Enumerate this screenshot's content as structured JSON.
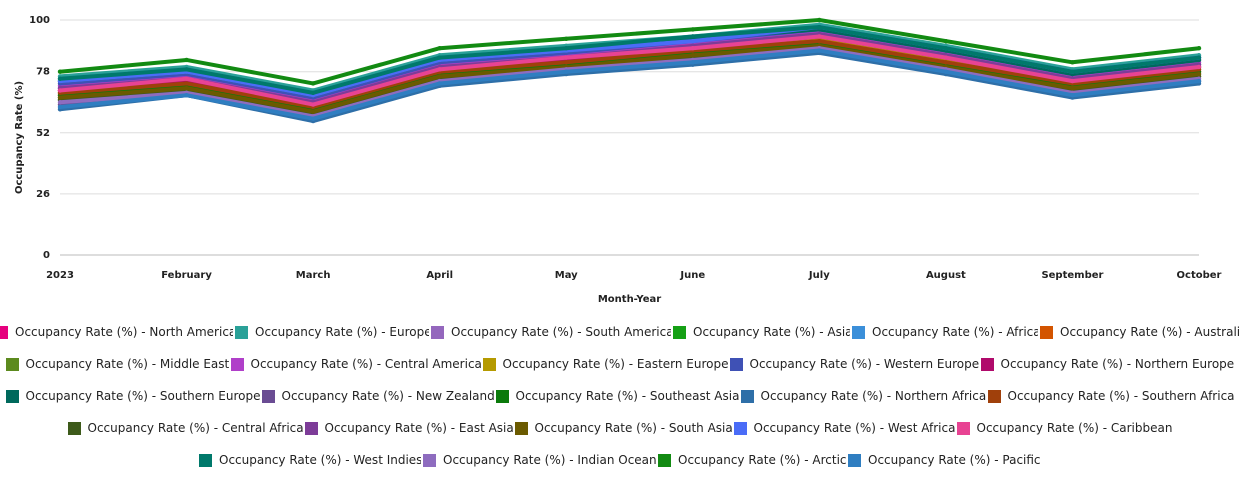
{
  "chart_data": {
    "type": "line",
    "xlabel": "Month-Year",
    "ylabel": "Occupancy Rate (%)",
    "ylim": [
      0,
      104
    ],
    "yticks": [
      0,
      26,
      52,
      78,
      100
    ],
    "grid": true,
    "legend_position": "bottom",
    "categories": [
      "2023",
      "February",
      "March",
      "April",
      "May",
      "June",
      "July",
      "August",
      "September",
      "October"
    ],
    "series": [
      {
        "name": "Occupancy Rate (%) - North America",
        "color": "#e6007e",
        "values": [
          70,
          74,
          64,
          79,
          84,
          88,
          93,
          84,
          74,
          80
        ]
      },
      {
        "name": "Occupancy Rate (%) - Europe",
        "color": "#2aa198",
        "values": [
          76,
          80,
          70,
          85,
          89,
          93,
          98,
          89,
          79,
          85
        ]
      },
      {
        "name": "Occupancy Rate (%) - South America",
        "color": "#9467bd",
        "values": [
          71,
          75,
          65,
          80,
          85,
          89,
          94,
          85,
          75,
          81
        ]
      },
      {
        "name": "Occupancy Rate (%) - Asia",
        "color": "#15a015",
        "values": [
          67,
          71,
          61,
          76,
          81,
          85,
          90,
          81,
          71,
          77
        ]
      },
      {
        "name": "Occupancy Rate (%) - Africa",
        "color": "#3b8fd9",
        "values": [
          75,
          79,
          69,
          84,
          88,
          92,
          97,
          88,
          78,
          84
        ]
      },
      {
        "name": "Occupancy Rate (%) - Australia",
        "color": "#d35400",
        "values": [
          68,
          72,
          62,
          77,
          82,
          86,
          91,
          82,
          72,
          78
        ]
      },
      {
        "name": "Occupancy Rate (%) - Middle East",
        "color": "#5c8a1e",
        "values": [
          66,
          70,
          60,
          75,
          80,
          84,
          89,
          80,
          70,
          76
        ]
      },
      {
        "name": "Occupancy Rate (%) - Central America",
        "color": "#b03fc9",
        "values": [
          72,
          76,
          66,
          81,
          85,
          90,
          95,
          86,
          76,
          82
        ]
      },
      {
        "name": "Occupancy Rate (%) - Eastern Europe",
        "color": "#b59a00",
        "values": [
          69,
          73,
          63,
          78,
          83,
          87,
          92,
          83,
          73,
          79
        ]
      },
      {
        "name": "Occupancy Rate (%) - Western Europe",
        "color": "#3f51b5",
        "values": [
          73,
          77,
          67,
          82,
          86,
          91,
          96,
          87,
          77,
          83
        ]
      },
      {
        "name": "Occupancy Rate (%) - Northern Europe",
        "color": "#b00a6b",
        "values": [
          70,
          74,
          64,
          79,
          83,
          88,
          93,
          84,
          74,
          80
        ]
      },
      {
        "name": "Occupancy Rate (%) - Southern Europe",
        "color": "#00695c",
        "values": [
          74,
          78,
          68,
          83,
          87,
          92,
          96,
          87,
          77,
          83
        ]
      },
      {
        "name": "Occupancy Rate (%) - New Zealand",
        "color": "#6a4c93",
        "values": [
          64,
          68,
          58,
          73,
          78,
          82,
          87,
          78,
          68,
          74
        ]
      },
      {
        "name": "Occupancy Rate (%) - Southeast Asia",
        "color": "#0b7a0b",
        "values": [
          68,
          72,
          62,
          77,
          81,
          86,
          90,
          81,
          72,
          78
        ]
      },
      {
        "name": "Occupancy Rate (%) - Northern Africa",
        "color": "#2e6fa8",
        "values": [
          62,
          68,
          57,
          72,
          77,
          81,
          86,
          77,
          67,
          73
        ]
      },
      {
        "name": "Occupancy Rate (%) - Southern Africa",
        "color": "#a0400b",
        "values": [
          69,
          73,
          63,
          78,
          82,
          87,
          91,
          82,
          73,
          79
        ]
      },
      {
        "name": "Occupancy Rate (%) - Central Africa",
        "color": "#3d5a1a",
        "values": [
          66,
          70,
          60,
          75,
          79,
          84,
          88,
          79,
          70,
          76
        ]
      },
      {
        "name": "Occupancy Rate (%) - East Asia",
        "color": "#7d3c98",
        "values": [
          71,
          75,
          65,
          80,
          84,
          89,
          94,
          85,
          75,
          81
        ]
      },
      {
        "name": "Occupancy Rate (%) - South Asia",
        "color": "#6b5a00",
        "values": [
          67,
          71,
          61,
          76,
          80,
          85,
          89,
          80,
          71,
          77
        ]
      },
      {
        "name": "Occupancy Rate (%) - West Africa",
        "color": "#4a6cf7",
        "values": [
          74,
          78,
          68,
          83,
          87,
          91,
          97,
          88,
          78,
          84
        ]
      },
      {
        "name": "Occupancy Rate (%) - Caribbean",
        "color": "#e84393",
        "values": [
          70,
          75,
          64,
          79,
          84,
          88,
          93,
          84,
          74,
          80
        ]
      },
      {
        "name": "Occupancy Rate (%) - West Indies",
        "color": "#00796b",
        "values": [
          75,
          79,
          69,
          84,
          88,
          93,
          97,
          88,
          78,
          84
        ]
      },
      {
        "name": "Occupancy Rate (%) - Indian Ocean",
        "color": "#8e6cbf",
        "values": [
          65,
          69,
          59,
          74,
          79,
          83,
          88,
          79,
          69,
          75
        ]
      },
      {
        "name": "Occupancy Rate (%) - Arctic",
        "color": "#128a12",
        "values": [
          78,
          83,
          73,
          88,
          92,
          96,
          100,
          91,
          82,
          88
        ]
      },
      {
        "name": "Occupancy Rate (%) - Pacific",
        "color": "#2f7ec1",
        "values": [
          63,
          68,
          58,
          73,
          78,
          82,
          87,
          78,
          68,
          74
        ]
      }
    ],
    "legend_rows": [
      [
        0,
        1,
        2,
        3,
        4,
        5
      ],
      [
        6,
        7,
        8,
        9,
        10
      ],
      [
        11,
        12,
        13,
        14,
        15
      ],
      [
        16,
        17,
        18,
        19,
        20
      ],
      [
        21,
        22,
        23,
        24
      ]
    ]
  }
}
